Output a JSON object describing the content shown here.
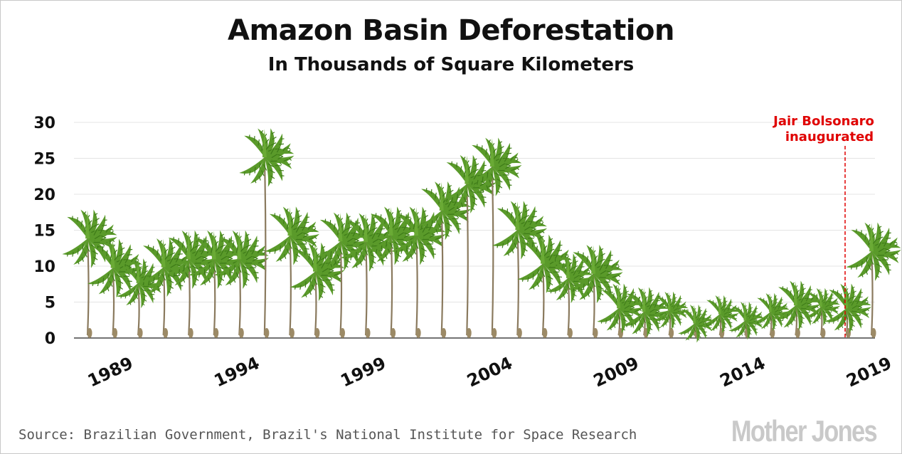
{
  "title": "Amazon Basin Deforestation",
  "subtitle": "In Thousands of Square Kilometers",
  "source": "Source: Brazilian Government, Brazil's National Institute for Space Research",
  "logo": "Mother Jones",
  "colors": {
    "palm_leaf": "#5a9a2a",
    "palm_trunk": "#8a7a5e",
    "annotation": "#e00000",
    "grid": "#e4e4e4"
  },
  "chart_data": {
    "type": "bar",
    "title": "Amazon Basin Deforestation",
    "subtitle": "In Thousands of Square Kilometers",
    "xlabel": "",
    "ylabel": "",
    "ylim": [
      0,
      30
    ],
    "yticks": [
      "0",
      "5",
      "10",
      "15",
      "20",
      "25",
      "30"
    ],
    "xtick_labels": [
      "1989",
      "1994",
      "1999",
      "2004",
      "2009",
      "2014",
      "2019"
    ],
    "grid": true,
    "marker": "palm-tree",
    "categories": [
      "1988",
      "1989",
      "1990",
      "1991",
      "1992",
      "1993",
      "1994",
      "1995",
      "1996",
      "1997",
      "1998",
      "1999",
      "2000",
      "2001",
      "2002",
      "2003",
      "2004",
      "2005",
      "2006",
      "2007",
      "2008",
      "2009",
      "2010",
      "2011",
      "2012",
      "2013",
      "2014",
      "2015",
      "2016",
      "2017",
      "2018",
      "2019"
    ],
    "values": [
      17.8,
      13.7,
      11.0,
      13.8,
      14.9,
      14.9,
      14.9,
      29.1,
      18.2,
      13.2,
      17.4,
      17.3,
      18.2,
      18.2,
      21.7,
      25.4,
      27.8,
      19.0,
      14.3,
      11.7,
      12.9,
      7.5,
      7.0,
      6.4,
      4.6,
      5.9,
      5.0,
      6.2,
      7.9,
      6.9,
      7.5,
      16.0
    ],
    "annotations": [
      {
        "label_line1": "Jair Bolsonaro",
        "label_line2": "inaugurated",
        "x": "2019-01-01"
      }
    ]
  }
}
